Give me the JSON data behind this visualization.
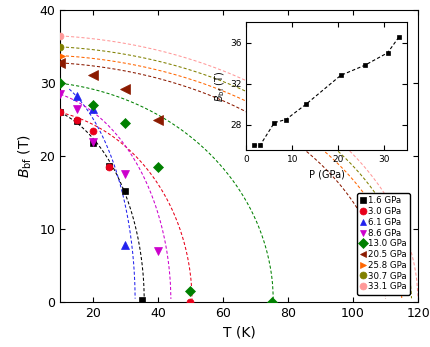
{
  "series": [
    {
      "label": "1.6 GPa",
      "color": "black",
      "marker": "s",
      "T": [
        10,
        15,
        20,
        25,
        30,
        35
      ],
      "B": [
        26.0,
        24.8,
        21.8,
        18.7,
        15.2,
        0.2
      ],
      "Tc": 35.8,
      "B0": 30.0
    },
    {
      "label": "3.0 GPa",
      "color": "#e8001a",
      "marker": "o",
      "T": [
        10,
        15,
        20,
        25,
        50
      ],
      "B": [
        26.0,
        25.0,
        23.5,
        18.5,
        0.0
      ],
      "Tc": 50.5,
      "B0": 29.0
    },
    {
      "label": "6.1 GPa",
      "color": "#2222ee",
      "marker": "^",
      "T": [
        15,
        20,
        30
      ],
      "B": [
        28.2,
        26.5,
        7.8
      ],
      "Tc": 33.0,
      "B0": 35.0
    },
    {
      "label": "8.6 GPa",
      "color": "#cc00cc",
      "marker": "v",
      "T": [
        10,
        15,
        20,
        30,
        40
      ],
      "B": [
        28.5,
        26.5,
        22.0,
        17.5,
        7.0
      ],
      "Tc": 44.0,
      "B0": 33.0
    },
    {
      "label": "13.0 GPa",
      "color": "#008000",
      "marker": "D",
      "T": [
        10,
        20,
        30,
        40,
        50,
        75
      ],
      "B": [
        30.0,
        27.0,
        24.5,
        18.5,
        1.5,
        0.0
      ],
      "Tc": 75.5,
      "B0": 33.0
    },
    {
      "label": "20.5 GPa",
      "color": "#8b1a00",
      "marker": "<",
      "T": [
        10,
        20,
        30,
        40
      ],
      "B": [
        32.8,
        31.2,
        29.2,
        25.0
      ],
      "Tc": 110.0,
      "B0": 36.0
    },
    {
      "label": "25.8 GPa",
      "color": "#ff6600",
      "marker": ">",
      "T": [
        10
      ],
      "B": [
        33.8
      ],
      "Tc": 115.0,
      "B0": 37.0
    },
    {
      "label": "30.7 GPa",
      "color": "#808000",
      "marker": "o",
      "T": [
        10
      ],
      "B": [
        35.0
      ],
      "Tc": 118.0,
      "B0": 38.0
    },
    {
      "label": "33.1 GPa",
      "color": "#ff9999",
      "marker": "o",
      "T": [
        10
      ],
      "B": [
        36.5
      ],
      "Tc": 120.0,
      "B0": 39.5
    }
  ],
  "inset_P": [
    1.6,
    3.0,
    6.1,
    8.6,
    13.0,
    20.5,
    25.8,
    30.7,
    33.1
  ],
  "inset_B": [
    26.0,
    26.0,
    28.2,
    28.5,
    30.0,
    32.8,
    33.8,
    35.0,
    36.5
  ],
  "xlim": [
    10,
    120
  ],
  "ylim": [
    0,
    40
  ],
  "xticks": [
    20,
    40,
    60,
    80,
    100,
    120
  ],
  "yticks": [
    0,
    10,
    20,
    30,
    40
  ]
}
